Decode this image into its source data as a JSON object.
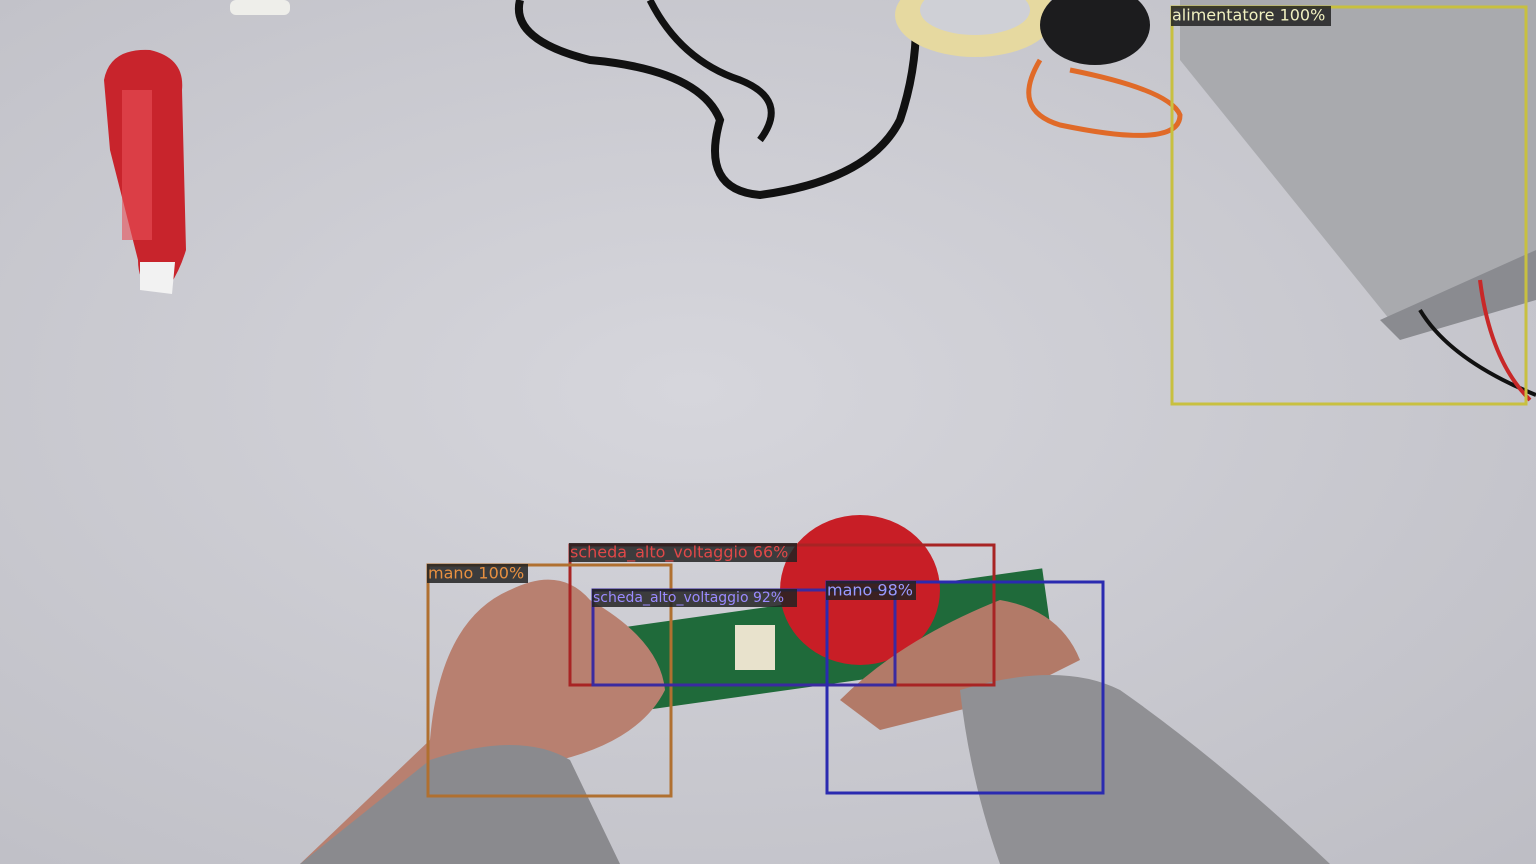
{
  "detections": [
    {
      "label": "alimentatore 100%"
    },
    {
      "label": "scheda_alto_voltaggio 66%"
    },
    {
      "label": "mano 100%"
    },
    {
      "label": "scheda_alto_voltaggio 92%"
    },
    {
      "label": "mano 98%"
    }
  ]
}
